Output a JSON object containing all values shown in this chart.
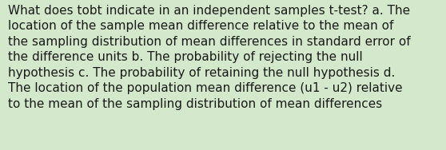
{
  "lines": [
    "What does tobt indicate in an independent samples t-test? a. The",
    "location of the sample mean difference relative to the mean of",
    "the sampling distribution of mean differences in standard error of",
    "the difference units b. The probability of rejecting the null",
    "hypothesis c. The probability of retaining the null hypothesis d.",
    "The location of the population mean difference (u1 - u2) relative",
    "to the mean of the sampling distribution of mean differences"
  ],
  "bg_color": "#d4e8cc",
  "text_color": "#1a1a1a",
  "font_size": 11.0,
  "font_family": "DejaVu Sans",
  "fig_width": 5.58,
  "fig_height": 1.88,
  "dpi": 100
}
